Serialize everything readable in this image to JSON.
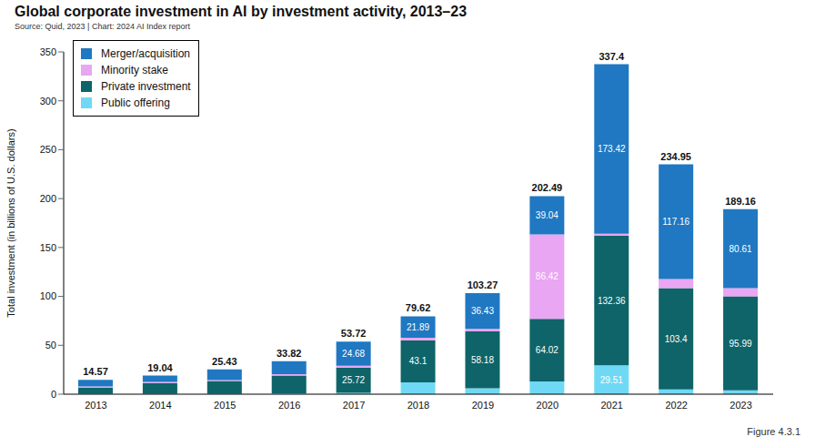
{
  "chart_data": {
    "type": "bar",
    "title": "Global corporate investment in AI by investment activity, 2013–23",
    "subtitle": "Source: Quid, 2023 | Chart: 2024 AI Index report",
    "caption": "Figure 4.3.1",
    "ylabel": "Total investment (in billions of U.S. dollars)",
    "categories": [
      "2013",
      "2014",
      "2015",
      "2016",
      "2017",
      "2018",
      "2019",
      "2020",
      "2021",
      "2022",
      "2023"
    ],
    "stacked": true,
    "grid": false,
    "legend": "upper left",
    "ylim": [
      0,
      350
    ],
    "yticks": [
      0,
      50,
      100,
      150,
      200,
      250,
      300,
      350
    ],
    "totals": [
      14.57,
      19.04,
      25.43,
      33.82,
      53.72,
      79.62,
      103.27,
      202.49,
      337.4,
      234.95,
      189.16
    ],
    "series": [
      {
        "name": "Merger/acquisition",
        "color": "#1f78c1",
        "values": [
          6.57,
          6.54,
          10.93,
          13.32,
          24.68,
          21.89,
          36.43,
          39.04,
          173.42,
          117.16,
          80.61
        ],
        "value_labels": [
          null,
          null,
          null,
          null,
          "24.68",
          "21.89",
          "36.43",
          "39.04",
          "173.42",
          "117.16",
          "80.61"
        ]
      },
      {
        "name": "Minority stake",
        "color": "#e9a6f2",
        "values": [
          1.5,
          1,
          1,
          1.5,
          1.82,
          2.63,
          2.66,
          86.42,
          2.11,
          9.39,
          8.56
        ],
        "value_labels": [
          null,
          null,
          null,
          null,
          null,
          null,
          null,
          "86.42",
          null,
          null,
          null
        ]
      },
      {
        "name": "Private investment",
        "color": "#0e6468",
        "values": [
          6,
          11,
          13,
          18,
          25.72,
          43.1,
          58.18,
          64.02,
          132.36,
          103.4,
          95.99
        ],
        "value_labels": [
          null,
          null,
          null,
          null,
          "25.72",
          "43.1",
          "58.18",
          "64.02",
          "132.36",
          "103.4",
          "95.99"
        ]
      },
      {
        "name": "Public offering",
        "color": "#6fd9f5",
        "values": [
          0.5,
          0.5,
          0.5,
          1,
          1.5,
          12,
          6,
          13.01,
          29.51,
          5,
          4
        ],
        "value_labels": [
          null,
          null,
          null,
          null,
          null,
          null,
          null,
          null,
          "29.51",
          null,
          null
        ]
      }
    ]
  }
}
